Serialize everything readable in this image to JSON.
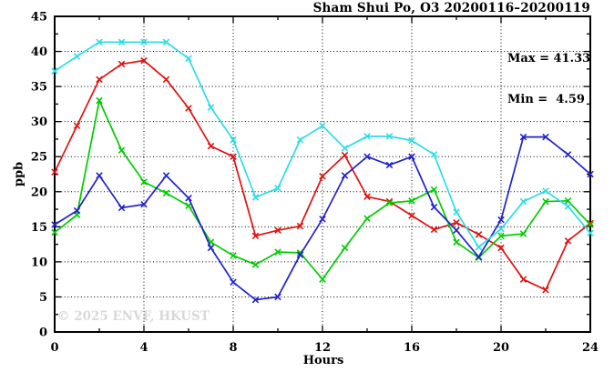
{
  "header": {
    "title": "Sham Shui Po, O3 20200116–20200119"
  },
  "annotations": {
    "max_label": "Max = 41.33",
    "min_label": "Min =  4.59",
    "watermark": "© 2025 ENVF, HKUST"
  },
  "chart_data": {
    "type": "line",
    "title": "Sham Shui Po, O3 20200116–20200119",
    "xlabel": "Hours",
    "ylabel": "ppb",
    "xlim": [
      0,
      24
    ],
    "ylim": [
      0,
      45
    ],
    "x_major_ticks": [
      0,
      4,
      8,
      12,
      16,
      20,
      24
    ],
    "x_minor_ticks": [
      2,
      6,
      10,
      14,
      18,
      22
    ],
    "y_major_ticks": [
      0,
      5,
      10,
      15,
      20,
      25,
      30,
      35,
      40,
      45
    ],
    "y_minor_ticks": [
      2.5,
      7.5,
      12.5,
      17.5,
      22.5,
      27.5,
      32.5,
      37.5,
      42.5
    ],
    "x_gridlines": [
      4,
      8,
      12,
      16,
      20
    ],
    "y_gridlines": [
      5,
      10,
      15,
      20,
      25,
      30,
      35,
      40
    ],
    "grid_style": "dotted",
    "marker": "x",
    "legend_position": "none",
    "stats": {
      "max": 41.33,
      "min": 4.59
    },
    "x": [
      0,
      1,
      2,
      3,
      4,
      5,
      6,
      7,
      8,
      9,
      10,
      11,
      12,
      13,
      14,
      15,
      16,
      17,
      18,
      19,
      20,
      21,
      22,
      23,
      24
    ],
    "series": [
      {
        "name": "red",
        "color": "#e01010",
        "values": [
          22.8,
          29.4,
          36.0,
          38.2,
          38.7,
          36.0,
          31.9,
          26.5,
          25.0,
          13.7,
          14.5,
          15.1,
          22.2,
          25.2,
          19.3,
          18.6,
          16.6,
          14.6,
          15.6,
          13.9,
          12.0,
          7.5,
          6.0,
          13.0,
          15.5
        ]
      },
      {
        "name": "green",
        "color": "#00cc00",
        "values": [
          14.2,
          16.7,
          33.0,
          25.9,
          21.4,
          19.8,
          18.0,
          12.8,
          10.9,
          9.6,
          11.4,
          11.3,
          7.5,
          12.0,
          16.2,
          18.4,
          18.7,
          20.3,
          12.8,
          10.6,
          13.7,
          14.0,
          18.6,
          18.7,
          15.3
        ]
      },
      {
        "name": "blue",
        "color": "#2222cc",
        "values": [
          15.3,
          17.3,
          22.3,
          17.7,
          18.2,
          22.3,
          19.1,
          12.0,
          7.1,
          4.59,
          5.0,
          11.0,
          16.1,
          22.3,
          25.0,
          23.8,
          25.0,
          17.8,
          14.5,
          10.7,
          16.0,
          27.8,
          27.8,
          25.3,
          22.5
        ]
      },
      {
        "name": "cyan",
        "color": "#2bdde4",
        "values": [
          37.2,
          39.3,
          41.33,
          41.33,
          41.33,
          41.33,
          39.0,
          32.0,
          27.4,
          19.2,
          20.5,
          27.4,
          29.4,
          26.2,
          27.9,
          27.9,
          27.3,
          25.3,
          17.1,
          12.1,
          14.7,
          18.6,
          20.1,
          17.9,
          14.1
        ]
      }
    ]
  }
}
